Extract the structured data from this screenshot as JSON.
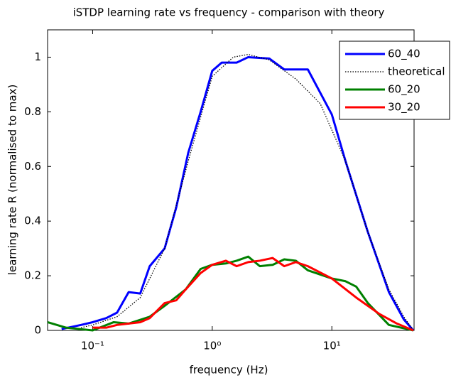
{
  "chart_data": {
    "type": "line",
    "title": "iSTDP learning rate vs frequency - comparison with theory",
    "xlabel": "frequency (Hz)",
    "ylabel": "learning rate R (normalised to max)",
    "xscale": "log",
    "xlim": [
      0.042,
      48.7
    ],
    "ylim": [
      0,
      1.1
    ],
    "xticks": [
      {
        "value": 0.1,
        "label": "10⁻¹"
      },
      {
        "value": 1,
        "label": "10⁰"
      },
      {
        "value": 10,
        "label": "10¹"
      }
    ],
    "yticks": [
      0,
      0.2,
      0.4,
      0.6,
      0.8,
      1
    ],
    "grid": false,
    "legend": "northeast",
    "series": [
      {
        "name": "60_40",
        "color": "#0000ff",
        "linestyle": "solid",
        "width": 3,
        "x": [
          0.055,
          0.08,
          0.1,
          0.13,
          0.16,
          0.2,
          0.25,
          0.3,
          0.4,
          0.5,
          0.63,
          0.8,
          1.0,
          1.2,
          1.6,
          2.0,
          3.0,
          4.0,
          6.3,
          10,
          13,
          20,
          30,
          40,
          48
        ],
        "values": [
          0.005,
          0.02,
          0.03,
          0.045,
          0.065,
          0.14,
          0.135,
          0.235,
          0.3,
          0.45,
          0.65,
          0.8,
          0.95,
          0.98,
          0.98,
          1.0,
          0.995,
          0.955,
          0.955,
          0.79,
          0.62,
          0.36,
          0.14,
          0.04,
          0.0
        ]
      },
      {
        "name": "theoretical",
        "color": "#000000",
        "linestyle": "dotted",
        "width": 1.3,
        "x": [
          0.08,
          0.1,
          0.16,
          0.25,
          0.4,
          0.63,
          1.0,
          1.5,
          2.0,
          3.0,
          5.0,
          8.0,
          13,
          20,
          30,
          40,
          48
        ],
        "values": [
          0.01,
          0.02,
          0.05,
          0.12,
          0.3,
          0.62,
          0.93,
          1.0,
          1.01,
          0.99,
          0.92,
          0.83,
          0.62,
          0.36,
          0.15,
          0.05,
          0.0
        ]
      },
      {
        "name": "60_20",
        "color": "#008000",
        "linestyle": "solid",
        "width": 3,
        "x": [
          0.042,
          0.06,
          0.1,
          0.15,
          0.2,
          0.3,
          0.4,
          0.6,
          0.8,
          1.0,
          1.3,
          1.6,
          2.0,
          2.5,
          3.2,
          4.0,
          5.0,
          6.3,
          10,
          13,
          16,
          20,
          30,
          48
        ],
        "values": [
          0.03,
          0.01,
          0.0,
          0.03,
          0.025,
          0.05,
          0.09,
          0.15,
          0.225,
          0.24,
          0.245,
          0.255,
          0.27,
          0.235,
          0.24,
          0.26,
          0.255,
          0.22,
          0.19,
          0.18,
          0.16,
          0.1,
          0.02,
          0.0
        ]
      },
      {
        "name": "30_20",
        "color": "#ff0000",
        "linestyle": "solid",
        "width": 3,
        "x": [
          0.1,
          0.13,
          0.16,
          0.25,
          0.3,
          0.4,
          0.5,
          0.6,
          0.8,
          1.0,
          1.3,
          1.6,
          2.0,
          2.5,
          3.2,
          4.0,
          5.0,
          6.3,
          10,
          16,
          25,
          35,
          48
        ],
        "values": [
          0.01,
          0.01,
          0.02,
          0.03,
          0.045,
          0.1,
          0.11,
          0.15,
          0.21,
          0.24,
          0.255,
          0.235,
          0.25,
          0.255,
          0.265,
          0.235,
          0.25,
          0.235,
          0.19,
          0.12,
          0.06,
          0.025,
          0.0
        ]
      }
    ]
  }
}
